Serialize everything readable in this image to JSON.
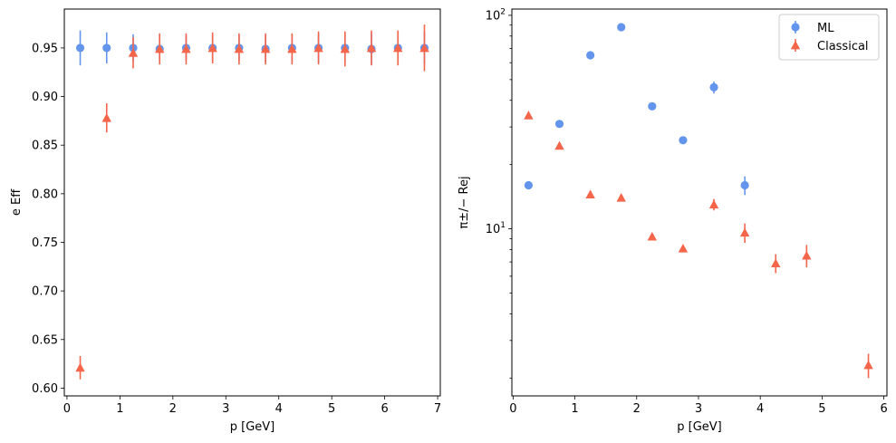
{
  "chart_data": [
    {
      "type": "scatter",
      "xlabel": "p [GeV]",
      "ylabel": "e Eff",
      "xlim": [
        -0.05,
        7.05
      ],
      "ylim": [
        0.592,
        0.99
      ],
      "yscale": "linear",
      "xticks": [
        0,
        1,
        2,
        3,
        4,
        5,
        6,
        7
      ],
      "xtick_labels": [
        "0",
        "1",
        "2",
        "3",
        "4",
        "5",
        "6",
        "7"
      ],
      "yticks": [
        0.6,
        0.65,
        0.7,
        0.75,
        0.8,
        0.85,
        0.9,
        0.95
      ],
      "ytick_labels": [
        "0.60",
        "0.65",
        "0.70",
        "0.75",
        "0.80",
        "0.85",
        "0.90",
        "0.95"
      ],
      "grid": false,
      "series": [
        {
          "name": "ML",
          "marker": "circle",
          "color": "#6495ED",
          "x": [
            0.25,
            0.75,
            1.25,
            1.75,
            2.25,
            2.75,
            3.25,
            3.75,
            4.25,
            4.75,
            5.25,
            5.75,
            6.25,
            6.75
          ],
          "y": [
            0.95,
            0.95,
            0.95,
            0.949,
            0.95,
            0.95,
            0.95,
            0.949,
            0.95,
            0.95,
            0.95,
            0.949,
            0.95,
            0.95
          ],
          "yerr": [
            0.018,
            0.016,
            0.014,
            0.012,
            0.013,
            0.013,
            0.013,
            0.014,
            0.014,
            0.015,
            0.016,
            0.016,
            0.016,
            0.017
          ]
        },
        {
          "name": "Classical",
          "marker": "triangle",
          "color": "#F4654A",
          "x": [
            0.25,
            0.75,
            1.25,
            1.75,
            2.25,
            2.75,
            3.25,
            3.75,
            4.25,
            4.75,
            5.25,
            5.75,
            6.25,
            6.75
          ],
          "y": [
            0.621,
            0.878,
            0.945,
            0.949,
            0.949,
            0.95,
            0.949,
            0.949,
            0.949,
            0.95,
            0.949,
            0.95,
            0.95,
            0.95
          ],
          "yerr": [
            0.012,
            0.015,
            0.016,
            0.016,
            0.016,
            0.016,
            0.016,
            0.016,
            0.016,
            0.017,
            0.018,
            0.018,
            0.018,
            0.024
          ]
        }
      ]
    },
    {
      "type": "scatter",
      "xlabel": "p [GeV]",
      "ylabel": "π±/− Rej",
      "xlim": [
        -0.02,
        6.05
      ],
      "ylim": [
        1.65,
        107
      ],
      "yscale": "log",
      "xticks": [
        0,
        1,
        2,
        3,
        4,
        5,
        6
      ],
      "xtick_labels": [
        "0",
        "1",
        "2",
        "3",
        "4",
        "5",
        "6"
      ],
      "yticks": [
        10,
        100
      ],
      "ytick_labels": [
        "10",
        "100"
      ],
      "grid": false,
      "legend": {
        "position": "top-right",
        "entries": [
          "ML",
          "Classical"
        ]
      },
      "series": [
        {
          "name": "ML",
          "marker": "circle",
          "color": "#6495ED",
          "x": [
            0.25,
            0.75,
            1.25,
            1.75,
            2.25,
            2.75,
            3.25,
            3.75
          ],
          "y": [
            16.0,
            31.0,
            65.0,
            88.0,
            37.5,
            26.0,
            46.0,
            16.0
          ],
          "yerr": [
            0.4,
            0.8,
            1.8,
            2.5,
            1.0,
            0.7,
            3.0,
            1.6
          ]
        },
        {
          "name": "Classical",
          "marker": "triangle",
          "color": "#F4654A",
          "x": [
            0.25,
            0.75,
            1.25,
            1.75,
            2.25,
            2.75,
            3.25,
            3.75,
            4.25,
            4.75,
            5.75
          ],
          "y": [
            34.0,
            24.5,
            14.5,
            14.0,
            9.2,
            8.1,
            13.0,
            9.6,
            6.9,
            7.5,
            2.3
          ],
          "yerr": [
            0.6,
            0.5,
            0.3,
            0.3,
            0.2,
            0.2,
            0.8,
            1.0,
            0.7,
            0.9,
            0.3
          ]
        }
      ]
    }
  ]
}
